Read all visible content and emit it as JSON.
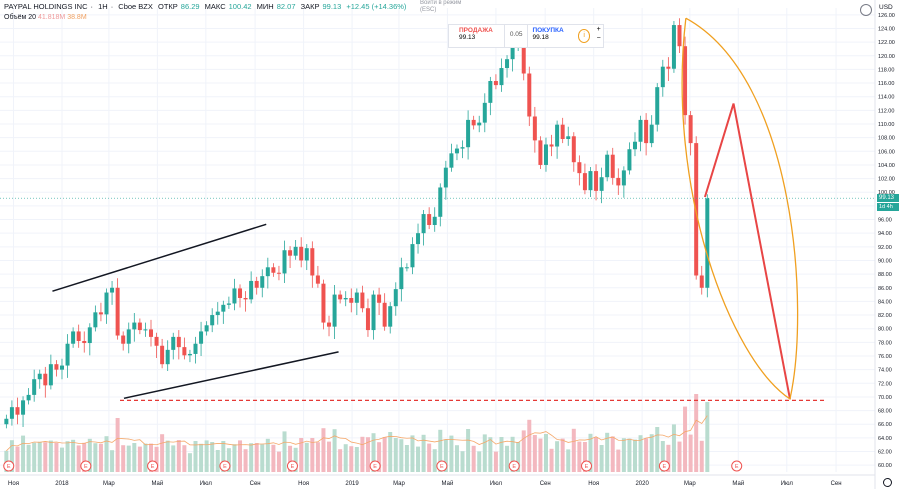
{
  "header": {
    "symbol": "PAYPAL HOLDINGS INC",
    "interval": "1H",
    "exchange": "Cboe BZX",
    "open_label": "ОТКР",
    "open": "86.29",
    "high_label": "МАКС",
    "high": "100.42",
    "low_label": "МИН",
    "low": "82.07",
    "close_label": "ЗАКР",
    "close": "99.13",
    "change": "+12.45 (+14.36%)"
  },
  "volume_header": {
    "label": "Объём 20",
    "v1": "41.818M",
    "v2": "38.8M"
  },
  "center_note": {
    "line1": "Войти в режим",
    "line2": "(ESC)"
  },
  "trade_panel": {
    "sell_label": "ПРОДАЖА",
    "sell_price": "99.13",
    "spread": "0.05",
    "buy_label": "ПОКУПКА",
    "buy_price": "99.18",
    "info_icon": "i",
    "plus": "+",
    "minus": "−"
  },
  "currency": "USD",
  "last_price_tag": "99.13",
  "time_tag": "1d 4h",
  "colors": {
    "up": "#26a69a",
    "down": "#ef5350",
    "vol_up": "#b9dccf",
    "vol_down": "#f3b8bf",
    "channel": "#131722",
    "forecast": "#e84545",
    "ellipse": "#f0a020",
    "support": "#e53935",
    "ma": "#f5a86a"
  },
  "chart_data": {
    "type": "candlestick",
    "title": "PAYPAL HOLDINGS INC · 1H · Cboe BZX",
    "ylim": [
      59,
      127
    ],
    "y_ticks": [
      60,
      62,
      64,
      66,
      68,
      70,
      72,
      74,
      76,
      78,
      80,
      82,
      84,
      86,
      88,
      90,
      92,
      94,
      96,
      98,
      100,
      102,
      104,
      106,
      108,
      110,
      112,
      114,
      116,
      118,
      120,
      122,
      124,
      126
    ],
    "y_tick_labels": [
      "60.00",
      "62.00",
      "64.00",
      "66.00",
      "68.00",
      "70.00",
      "72.00",
      "74.00",
      "76.00",
      "78.00",
      "80.00",
      "82.00",
      "84.00",
      "86.00",
      "88.00",
      "90.00",
      "92.00",
      "94.00",
      "96.00",
      "98.00",
      "100.00",
      "102.00",
      "104.00",
      "106.00",
      "108.00",
      "110.00",
      "112.00",
      "114.00",
      "116.00",
      "118.00",
      "120.00",
      "122.00",
      "124.00",
      "126.00"
    ],
    "x_range": [
      "2017-10-15",
      "2020-10-20"
    ],
    "x_ticks": [
      {
        "date": "2017-11-01",
        "label": "Ноя"
      },
      {
        "date": "2018-01-01",
        "label": "2018"
      },
      {
        "date": "2018-03-01",
        "label": "Мар"
      },
      {
        "date": "2018-05-01",
        "label": "Май"
      },
      {
        "date": "2018-07-01",
        "label": "Июл"
      },
      {
        "date": "2018-09-01",
        "label": "Сен"
      },
      {
        "date": "2018-11-01",
        "label": "Ноя"
      },
      {
        "date": "2019-01-01",
        "label": "2019"
      },
      {
        "date": "2019-03-01",
        "label": "Мар"
      },
      {
        "date": "2019-05-01",
        "label": "Май"
      },
      {
        "date": "2019-07-01",
        "label": "Июл"
      },
      {
        "date": "2019-09-01",
        "label": "Сен"
      },
      {
        "date": "2019-11-01",
        "label": "Ноя"
      },
      {
        "date": "2020-01-01",
        "label": "2020"
      },
      {
        "date": "2020-03-01",
        "label": "Мар"
      },
      {
        "date": "2020-05-01",
        "label": "Май"
      },
      {
        "date": "2020-07-01",
        "label": "Июл"
      },
      {
        "date": "2020-09-01",
        "label": "Сен"
      }
    ],
    "earnings_dates": [
      "2017-10-26",
      "2018-01-31",
      "2018-04-25",
      "2018-07-25",
      "2018-10-18",
      "2019-01-30",
      "2019-04-24",
      "2019-07-24",
      "2019-10-23",
      "2020-01-29",
      "2020-04-29"
    ],
    "earnings_label": "E",
    "candles_close": [
      66.8,
      68.5,
      67.4,
      69.5,
      70.3,
      72.6,
      73.4,
      71.7,
      74.8,
      74.0,
      74.6,
      77.8,
      79.6,
      78.2,
      77.9,
      80.2,
      82.4,
      82.1,
      85.3,
      86.0,
      79.0,
      77.8,
      79.9,
      80.9,
      79.8,
      79.9,
      78.8,
      77.5,
      74.8,
      76.9,
      78.8,
      77.3,
      76.1,
      76.3,
      77.8,
      79.6,
      80.5,
      82.0,
      82.5,
      83.5,
      83.7,
      85.9,
      84.5,
      84.3,
      87.0,
      86.0,
      87.7,
      89.0,
      88.2,
      88.1,
      91.5,
      90.7,
      92.0,
      90.0,
      91.8,
      87.8,
      86.6,
      80.9,
      80.3,
      85.0,
      84.3,
      84.5,
      83.8,
      85.3,
      83.0,
      79.8,
      85.0,
      83.8,
      80.3,
      83.3,
      85.8,
      89.0,
      89.0,
      92.4,
      94.0,
      96.8,
      95.2,
      96.4,
      100.7,
      103.6,
      105.7,
      106.4,
      106.6,
      110.6,
      109.8,
      110.2,
      113.1,
      116.3,
      115.7,
      118.2,
      119.5,
      121.3,
      122.8,
      117.4,
      111.1,
      107.6,
      104.0,
      107.0,
      106.7,
      109.9,
      107.8,
      108.2,
      104.4,
      102.8,
      100.3,
      103.1,
      100.2,
      102.2,
      105.5,
      102.1,
      101.0,
      103.2,
      106.3,
      107.4,
      110.6,
      107.2,
      109.9,
      115.4,
      118.4,
      118.1,
      124.5,
      121.4,
      111.3,
      107.2,
      87.8,
      86.0,
      99.1
    ],
    "volume_note": "volume histogram and 20-period volume moving average shown in lower pane",
    "annotations": {
      "channel_upper": [
        [
          "2017-12-20",
          85.5
        ],
        [
          "2018-09-15",
          95.3
        ]
      ],
      "channel_lower": [
        [
          "2018-03-20",
          69.8
        ],
        [
          "2018-12-15",
          76.6
        ]
      ],
      "support_level": 69.5,
      "support_range": [
        "2018-03-15",
        "2020-08-20"
      ],
      "forecast_path": [
        [
          "2020-03-20",
          99.3
        ],
        [
          "2020-04-25",
          113.0
        ],
        [
          "2020-07-05",
          69.7
        ]
      ],
      "ellipse_top": [
        "2020-02-25",
        125.5
      ],
      "ellipse_bottom": [
        "2020-07-05",
        69.7
      ]
    }
  }
}
